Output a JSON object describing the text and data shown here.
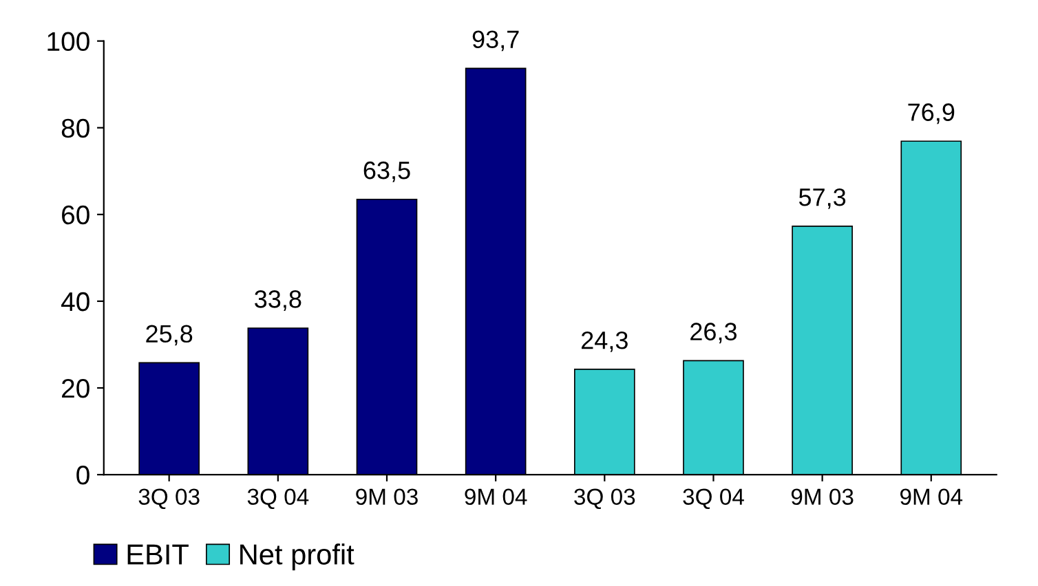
{
  "chart_data": {
    "type": "bar",
    "categories": [
      "3Q 03",
      "3Q 04",
      "9M 03",
      "9M 04",
      "3Q 03",
      "3Q 04",
      "9M 03",
      "9M 04"
    ],
    "series": [
      {
        "name": "EBIT",
        "color": "#000080",
        "values": [
          25.8,
          33.8,
          63.5,
          93.7,
          null,
          null,
          null,
          null
        ],
        "value_labels": [
          "25,8",
          "33,8",
          "63,5",
          "93,7",
          null,
          null,
          null,
          null
        ]
      },
      {
        "name": "Net profit",
        "color": "#33cccc",
        "values": [
          null,
          null,
          null,
          null,
          24.3,
          26.3,
          57.3,
          76.9
        ],
        "value_labels": [
          null,
          null,
          null,
          null,
          "24,3",
          "26,3",
          "57,3",
          "76,9"
        ]
      }
    ],
    "ylim": [
      0,
      100
    ],
    "yticks": [
      0,
      20,
      40,
      60,
      80,
      100
    ],
    "grid": false,
    "legend": "bottom left"
  }
}
